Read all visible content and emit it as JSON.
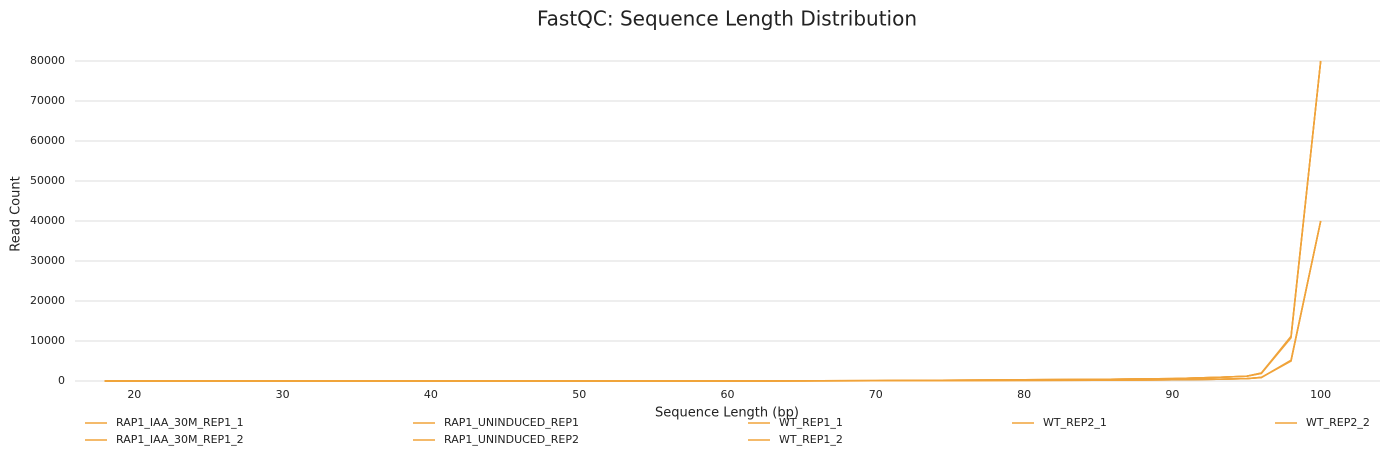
{
  "chart_data": {
    "type": "line",
    "title": "FastQC: Sequence Length Distribution",
    "x_label": "Sequence Length (bp)",
    "y_label": "Read Count",
    "x": [
      18,
      30,
      40,
      50,
      60,
      70,
      80,
      85,
      90,
      93,
      95,
      96,
      98,
      100
    ],
    "series": [
      {
        "name": "RAP1_IAA_30M_REP1_1",
        "color": "#f0a33a",
        "values": [
          0,
          0,
          0,
          0,
          0,
          100,
          300,
          400,
          600,
          900,
          1200,
          2000,
          11000,
          80000
        ]
      },
      {
        "name": "RAP1_IAA_30M_REP1_2",
        "color": "#f0a33a",
        "values": [
          0,
          0,
          0,
          0,
          0,
          50,
          150,
          200,
          300,
          450,
          600,
          900,
          5000,
          40000
        ]
      },
      {
        "name": "RAP1_UNINDUCED_REP1",
        "color": "#f0a33a",
        "values": [
          0,
          0,
          0,
          0,
          0,
          100,
          300,
          400,
          600,
          900,
          1200,
          1900,
          10800,
          80000
        ]
      },
      {
        "name": "RAP1_UNINDUCED_REP2",
        "color": "#f0a33a",
        "values": [
          0,
          0,
          0,
          0,
          0,
          50,
          150,
          200,
          300,
          450,
          600,
          850,
          5200,
          40000
        ]
      },
      {
        "name": "WT_REP1_1",
        "color": "#f0a33a",
        "values": [
          0,
          0,
          0,
          0,
          0,
          100,
          300,
          400,
          600,
          900,
          1200,
          2000,
          11200,
          80000
        ]
      },
      {
        "name": "WT_REP1_2",
        "color": "#f0a33a",
        "values": [
          0,
          0,
          0,
          0,
          0,
          50,
          150,
          200,
          300,
          450,
          600,
          900,
          5100,
          40000
        ]
      },
      {
        "name": "WT_REP2_1",
        "color": "#f0a33a",
        "values": [
          0,
          0,
          0,
          0,
          0,
          100,
          300,
          400,
          600,
          900,
          1200,
          1900,
          11000,
          80000
        ]
      },
      {
        "name": "WT_REP2_2",
        "color": "#f0a33a",
        "values": [
          0,
          0,
          0,
          0,
          0,
          50,
          150,
          200,
          300,
          450,
          600,
          900,
          5000,
          40000
        ]
      }
    ],
    "xlim": [
      16,
      104
    ],
    "ylim": [
      0,
      80000
    ],
    "xticks": [
      20,
      30,
      40,
      50,
      60,
      70,
      80,
      90,
      100
    ],
    "yticks": [
      0,
      10000,
      20000,
      30000,
      40000,
      50000,
      60000,
      70000,
      80000
    ],
    "grid": true
  }
}
